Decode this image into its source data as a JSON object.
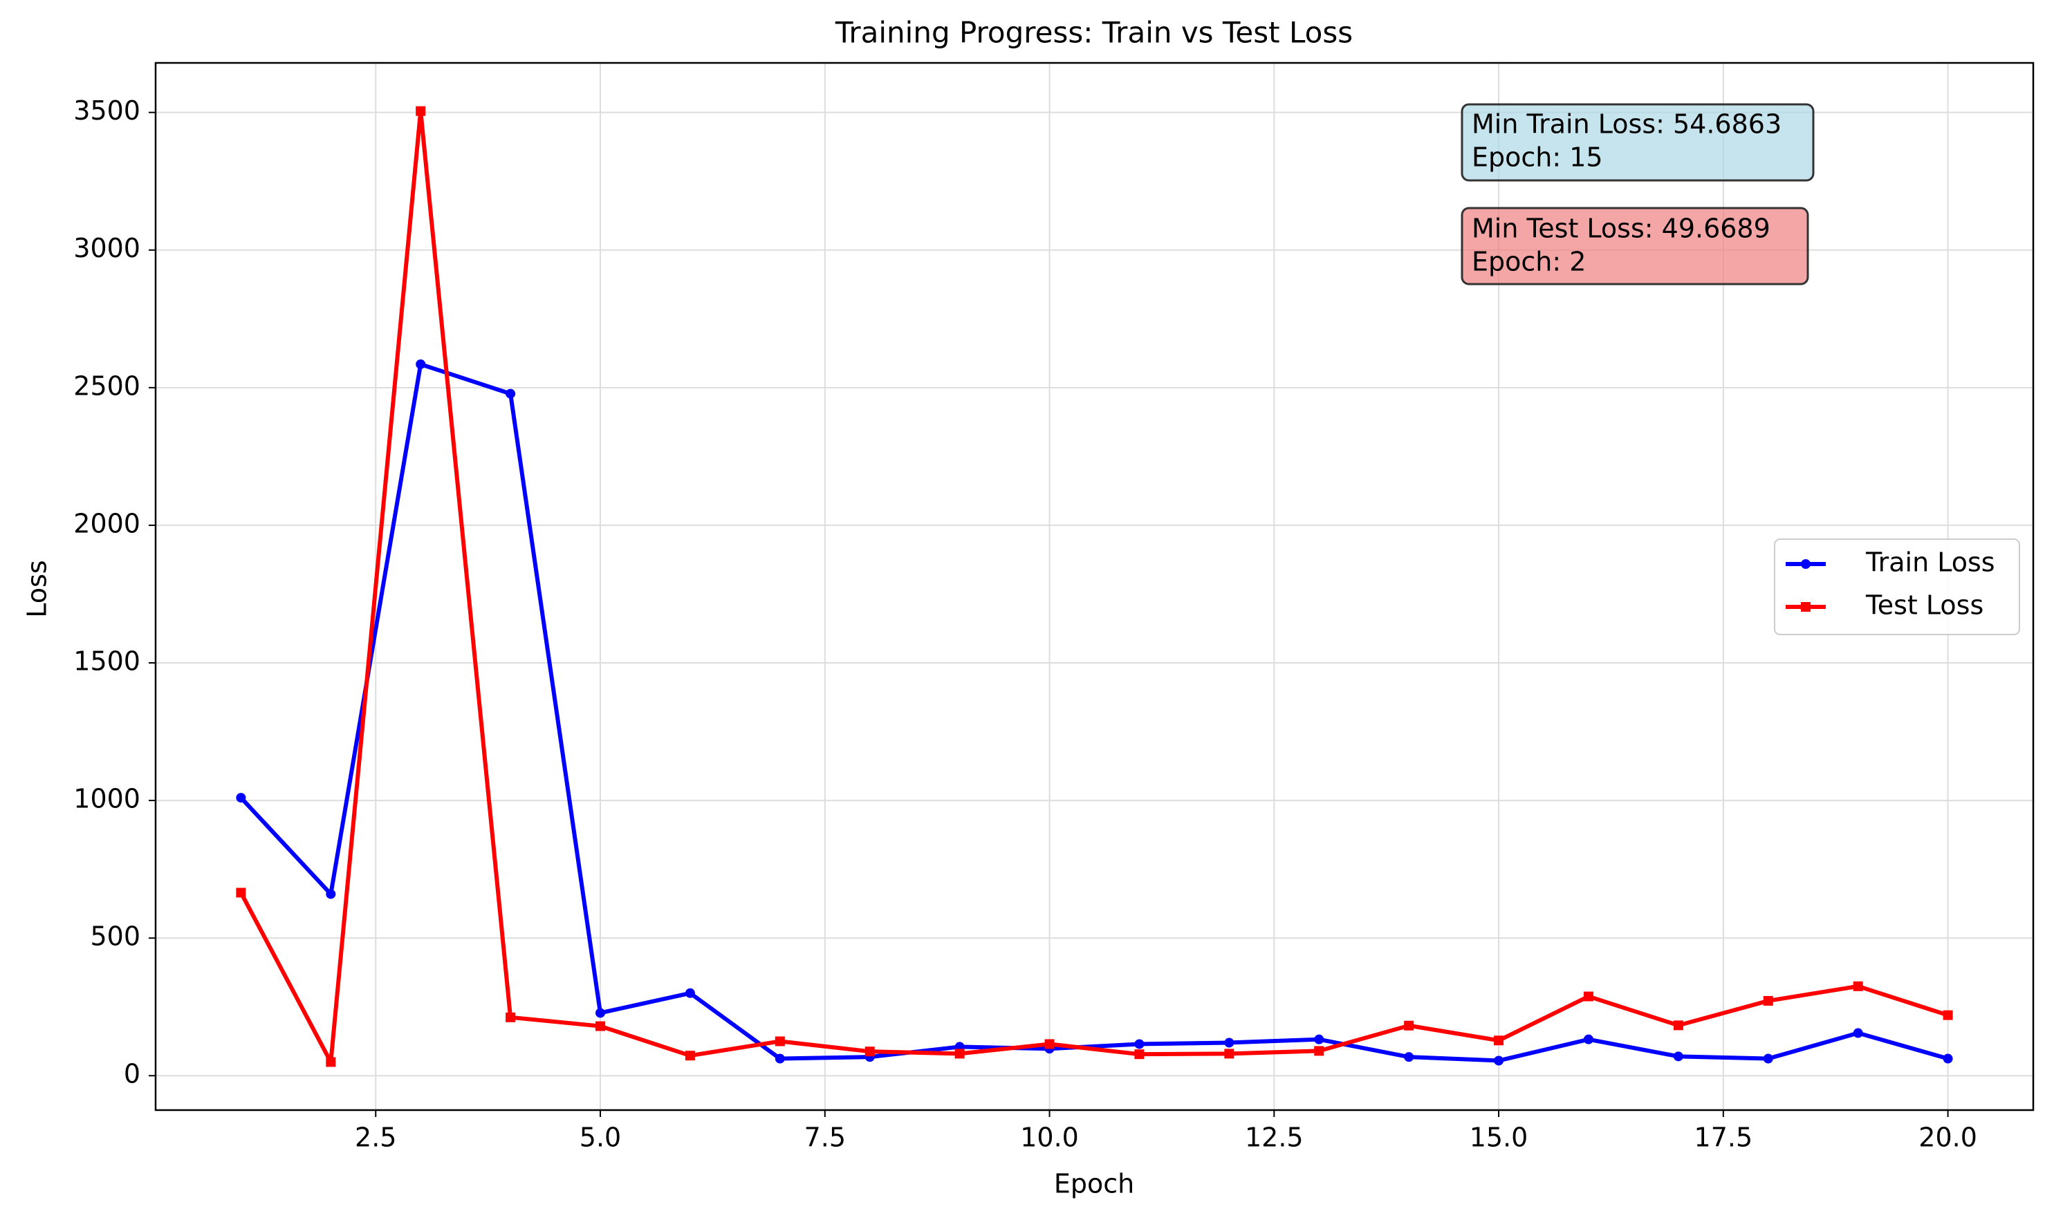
{
  "chart_data": {
    "type": "line",
    "title": "Training Progress: Train vs Test Loss",
    "xlabel": "Epoch",
    "ylabel": "Loss",
    "xlim": [
      0.05,
      20.95
    ],
    "ylim": [
      -125,
      3680
    ],
    "xticks": [
      2.5,
      5.0,
      7.5,
      10.0,
      12.5,
      15.0,
      17.5,
      20.0
    ],
    "xtick_labels": [
      "2.5",
      "5.0",
      "7.5",
      "10.0",
      "12.5",
      "15.0",
      "17.5",
      "20.0"
    ],
    "yticks": [
      0,
      500,
      1000,
      1500,
      2000,
      2500,
      3000,
      3500
    ],
    "ytick_labels": [
      "0",
      "500",
      "1000",
      "1500",
      "2000",
      "2500",
      "3000",
      "3500"
    ],
    "grid": true,
    "legend_position": "center-right",
    "x": [
      1,
      2,
      3,
      4,
      5,
      6,
      7,
      8,
      9,
      10,
      11,
      12,
      13,
      14,
      15,
      16,
      17,
      18,
      19,
      20
    ],
    "series": [
      {
        "name": "Train Loss",
        "color": "#0000ff",
        "marker": "circle",
        "values": [
          1010,
          660,
          2585,
          2478,
          228,
          300,
          62,
          68,
          105,
          98,
          115,
          120,
          132,
          68,
          54.6863,
          132,
          70,
          62,
          155,
          62
        ]
      },
      {
        "name": "Test Loss",
        "color": "#ff0000",
        "marker": "square",
        "values": [
          665,
          49.6689,
          3505,
          212,
          180,
          73,
          125,
          88,
          80,
          115,
          78,
          80,
          90,
          182,
          128,
          288,
          183,
          272,
          325,
          220
        ]
      }
    ],
    "annotations": [
      {
        "lines": [
          "Min Train Loss: 54.6863",
          "Epoch: 15"
        ],
        "background": "#add8e6",
        "position": "top-right"
      },
      {
        "lines": [
          "Min Test Loss: 49.6689",
          "Epoch: 2"
        ],
        "background": "#f08080",
        "position": "top-right"
      }
    ]
  }
}
